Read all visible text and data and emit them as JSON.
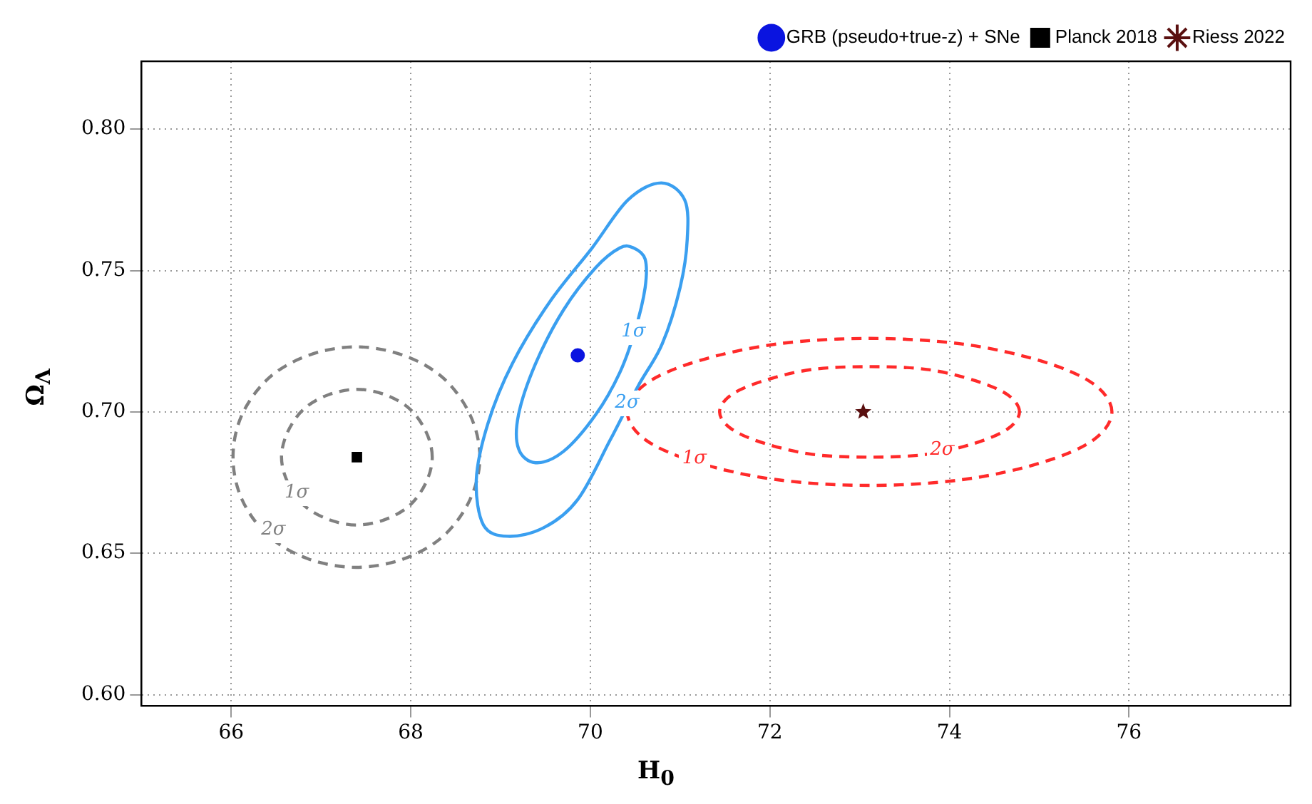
{
  "chart_data": {
    "type": "scatter",
    "xlabel": "H$_{0}$",
    "ylabel": "Ω$_{Λ}$",
    "xlim": [
      65,
      77.8
    ],
    "ylim": [
      0.596,
      0.824
    ],
    "xticks": [
      66,
      68,
      70,
      72,
      74,
      76
    ],
    "yticks": [
      {
        "value": 0.6,
        "label": "0.60"
      },
      {
        "value": 0.65,
        "label": "0.65"
      },
      {
        "value": 0.7,
        "label": "0.70"
      },
      {
        "value": 0.75,
        "label": "0.75"
      },
      {
        "value": 0.8,
        "label": "0.80"
      }
    ],
    "grid": true,
    "legend": "top right",
    "series": [
      {
        "type": "scatter",
        "name": "GRB (pseudo+true-z) + SNe",
        "color": "#0a14e0",
        "marker": "circle",
        "x": [
          69.86
        ],
        "values": [
          0.72
        ]
      },
      {
        "type": "scatter",
        "name": "Planck 2018",
        "color": "#000000",
        "marker": "square",
        "x": [
          67.4
        ],
        "values": [
          0.684
        ]
      },
      {
        "type": "scatter",
        "name": "Riess 2022",
        "color": "#5a1010",
        "marker": "star",
        "x": [
          73.04
        ],
        "values": [
          0.7
        ]
      }
    ],
    "annotations": [
      "1σ",
      "2σ",
      "1σ",
      "2σ",
      "1σ",
      "2σ"
    ]
  }
}
